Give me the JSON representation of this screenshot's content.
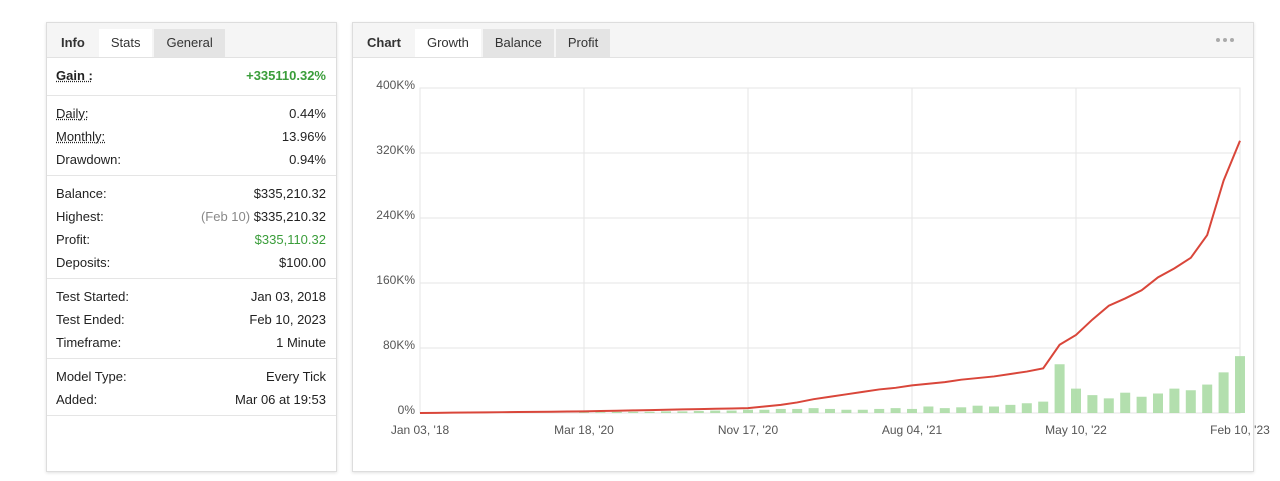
{
  "stats": {
    "tabs": [
      "Info",
      "Stats",
      "General"
    ],
    "groups": [
      [
        {
          "label": "Gain :",
          "value": "+335110.32%"
        }
      ],
      [
        {
          "label": "Daily:",
          "value": "0.44%"
        },
        {
          "label": "Monthly:",
          "value": "13.96%"
        },
        {
          "label": "Drawdown:",
          "value": "0.94%"
        }
      ],
      [
        {
          "label": "Balance:",
          "value": "$335,210.32"
        },
        {
          "label": "Highest:",
          "note": "(Feb 10)",
          "value": "$335,210.32"
        },
        {
          "label": "Profit:",
          "value": "$335,110.32"
        },
        {
          "label": "Deposits:",
          "value": "$100.00"
        }
      ],
      [
        {
          "label": "Test Started:",
          "value": "Jan 03, 2018"
        },
        {
          "label": "Test Ended:",
          "value": "Feb 10, 2023"
        },
        {
          "label": "Timeframe:",
          "value": "1 Minute"
        }
      ],
      [
        {
          "label": "Model Type:",
          "value": "Every Tick"
        },
        {
          "label": "Added:",
          "value": "Mar 06 at 19:53"
        }
      ]
    ]
  },
  "chart_tabs": [
    "Chart",
    "Growth",
    "Balance",
    "Profit"
  ],
  "chart_data": {
    "type": "line",
    "categories": [
      "Jan 03, '18",
      null,
      null,
      null,
      null,
      null,
      null,
      null,
      null,
      null,
      "Mar 18, '20",
      null,
      null,
      null,
      null,
      null,
      null,
      null,
      null,
      null,
      "Nov 17, '20",
      null,
      null,
      null,
      null,
      null,
      null,
      null,
      null,
      null,
      "Aug 04, '21",
      null,
      null,
      null,
      null,
      null,
      null,
      null,
      null,
      null,
      "May 10, '22",
      null,
      null,
      null,
      null,
      null,
      null,
      null,
      null,
      null,
      "Feb 10, '23"
    ],
    "series": [
      {
        "color": "#d9463a",
        "values": [
          0,
          200,
          400,
          600,
          800,
          1000,
          1200,
          1400,
          1600,
          1800,
          2000,
          2400,
          2800,
          3200,
          3600,
          4000,
          4400,
          4800,
          5200,
          5600,
          6000,
          8000,
          10000,
          13000,
          17000,
          20000,
          23000,
          26000,
          29000,
          31000,
          34000,
          36000,
          38000,
          41000,
          43000,
          45000,
          48000,
          51000,
          55000,
          84000,
          96000,
          115000,
          132000,
          141000,
          151000,
          167000,
          178000,
          191000,
          219000,
          286000,
          335110
        ]
      },
      {
        "color": "#a6d9a0",
        "type": "bar",
        "values": [
          0,
          0,
          0,
          0,
          0,
          0,
          0,
          0,
          0,
          0,
          1000,
          1000,
          1500,
          1500,
          1500,
          2000,
          2000,
          2500,
          3000,
          3000,
          4000,
          4000,
          5000,
          5000,
          6000,
          5000,
          4000,
          4000,
          5000,
          6000,
          5000,
          8000,
          6000,
          7000,
          9000,
          8000,
          10000,
          12000,
          14000,
          60000,
          30000,
          22000,
          18000,
          25000,
          20000,
          24000,
          30000,
          28000,
          35000,
          50000,
          70000
        ]
      }
    ],
    "ylim": [
      0,
      400000
    ],
    "yticks": [
      {
        "value": 0,
        "label": "0%"
      },
      {
        "value": 80000,
        "label": "80K%"
      },
      {
        "value": 160000,
        "label": "160K%"
      },
      {
        "value": 240000,
        "label": "240K%"
      },
      {
        "value": 320000,
        "label": "320K%"
      },
      {
        "value": 400000,
        "label": "400K%"
      }
    ],
    "grid": true
  }
}
